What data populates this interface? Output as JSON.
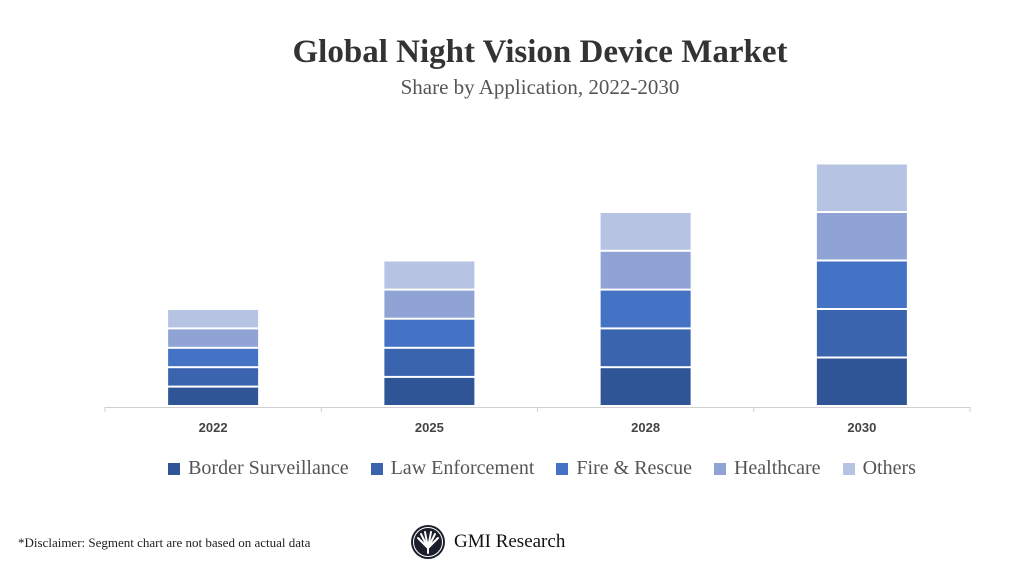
{
  "chart_data": {
    "type": "bar",
    "stacked": true,
    "title": "Global Night Vision Device Market",
    "subtitle": "Share by Application, 2022-2030",
    "categories": [
      "2022",
      "2025",
      "2028",
      "2030"
    ],
    "series": [
      {
        "name": "Border Surveillance",
        "color": "#2F5597",
        "values": [
          2,
          3,
          4,
          5
        ]
      },
      {
        "name": "Law Enforcement",
        "color": "#3A64AE",
        "values": [
          2,
          3,
          4,
          5
        ]
      },
      {
        "name": "Fire & Rescue",
        "color": "#4472C4",
        "values": [
          2,
          3,
          4,
          5
        ]
      },
      {
        "name": "Healthcare",
        "color": "#8FA3D4",
        "values": [
          2,
          3,
          4,
          5
        ]
      },
      {
        "name": "Others",
        "color": "#B7C3E3",
        "values": [
          2,
          3,
          4,
          5
        ]
      }
    ],
    "xlabel": "",
    "ylabel": "",
    "grid": false,
    "legend_position": "bottom"
  },
  "footer": {
    "disclaimer": "*Disclaimer:  Segment chart are not based on actual data",
    "brand": "GMI Research"
  }
}
